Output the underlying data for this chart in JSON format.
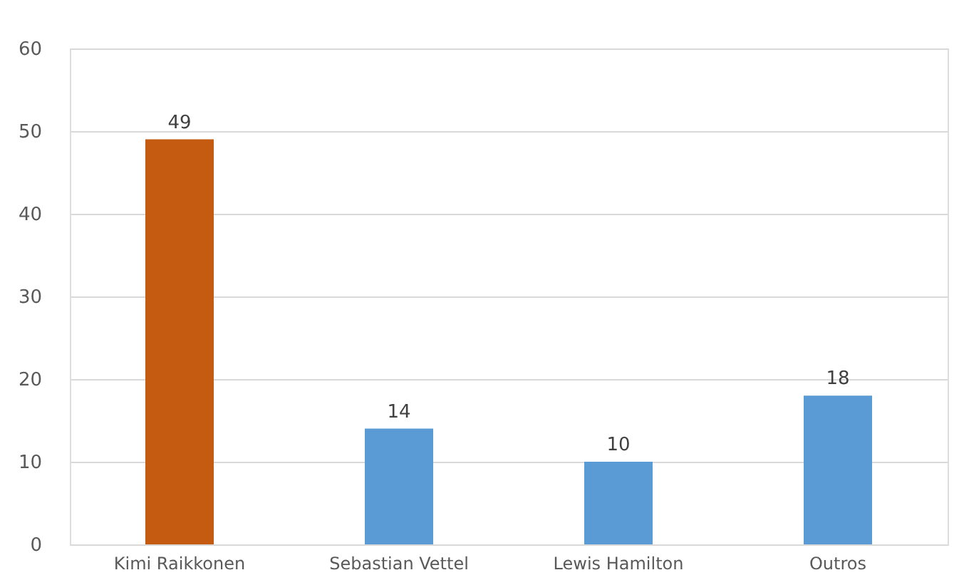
{
  "chart_data": {
    "type": "bar",
    "categories": [
      "Kimi Raikkonen",
      "Sebastian Vettel",
      "Lewis Hamilton",
      "Outros"
    ],
    "values": [
      49,
      14,
      10,
      18
    ],
    "colors": [
      "#c55a11",
      "#5b9bd5",
      "#5b9bd5",
      "#5b9bd5"
    ],
    "ylim": [
      0,
      60
    ],
    "yticks": [
      0,
      10,
      20,
      30,
      40,
      50,
      60
    ],
    "grid": "y",
    "data_labels": true
  }
}
